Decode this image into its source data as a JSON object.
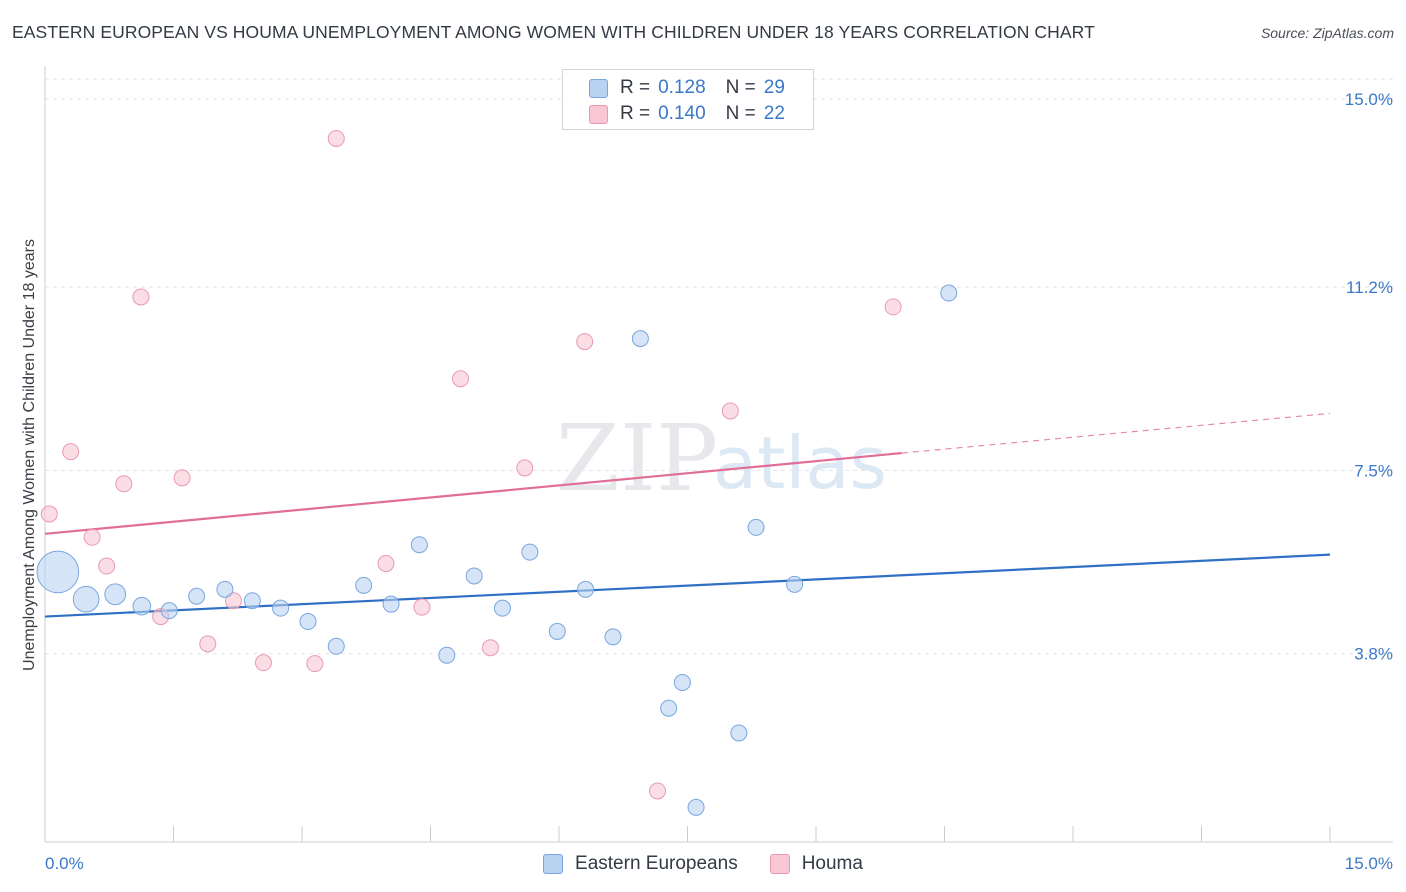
{
  "title": "EASTERN EUROPEAN VS HOUMA UNEMPLOYMENT AMONG WOMEN WITH CHILDREN UNDER 18 YEARS CORRELATION CHART",
  "source": "Source: ZipAtlas.com",
  "watermark": {
    "zip": "ZIP",
    "atlas": "atlas"
  },
  "legend": {
    "rows": [
      {
        "r_label": "R =",
        "r_value": "0.128",
        "n_label": "N =",
        "n_value": "29"
      },
      {
        "r_label": "R =",
        "r_value": "0.140",
        "n_label": "N =",
        "n_value": "22"
      }
    ]
  },
  "colors": {
    "eastern_fill": "#b9d2f2",
    "eastern_stroke": "#7aa6df",
    "eastern_line": "#2f6fc4",
    "houma_fill": "#f8c6d4",
    "houma_stroke": "#e99ab3",
    "houma_line": "#e06e96",
    "tick_label": "#3a78c9",
    "grid": "#dfe3e8"
  },
  "chart_data": {
    "type": "scatter",
    "title": "EASTERN EUROPEAN VS HOUMA UNEMPLOYMENT AMONG WOMEN WITH CHILDREN UNDER 18 YEARS CORRELATION CHART",
    "xlabel": "",
    "ylabel": "Unemployment Among Women with Children Under 18 years",
    "xlim": [
      0,
      15
    ],
    "ylim": [
      0,
      15.4
    ],
    "x_tick_labels": [
      "0.0%",
      "15.0%"
    ],
    "y_ticks": [
      3.8,
      7.5,
      11.2,
      15.0
    ],
    "y_tick_labels": [
      "3.8%",
      "7.5%",
      "11.2%",
      "15.0%"
    ],
    "legend_position": "top-center",
    "series": [
      {
        "name": "Eastern Europeans",
        "r": 0.128,
        "n": 29,
        "trend": {
          "x0": 0.0,
          "y0": 4.55,
          "x1": 15.0,
          "y1": 5.8
        },
        "points": [
          {
            "x": 0.15,
            "y": 5.45,
            "size": 2.6
          },
          {
            "x": 0.48,
            "y": 4.9,
            "size": 1.6
          },
          {
            "x": 0.82,
            "y": 5.0,
            "size": 1.3
          },
          {
            "x": 1.13,
            "y": 4.76,
            "size": 1.1
          },
          {
            "x": 1.45,
            "y": 4.67,
            "size": 1.0
          },
          {
            "x": 1.77,
            "y": 4.96,
            "size": 1.0
          },
          {
            "x": 2.1,
            "y": 5.1,
            "size": 1.0
          },
          {
            "x": 2.42,
            "y": 4.87,
            "size": 1.0
          },
          {
            "x": 2.75,
            "y": 4.72,
            "size": 1.0
          },
          {
            "x": 3.07,
            "y": 4.45,
            "size": 1.0
          },
          {
            "x": 3.4,
            "y": 3.95,
            "size": 1.0
          },
          {
            "x": 3.72,
            "y": 5.18,
            "size": 1.0
          },
          {
            "x": 4.04,
            "y": 4.8,
            "size": 1.0
          },
          {
            "x": 4.37,
            "y": 6.0,
            "size": 1.0
          },
          {
            "x": 4.69,
            "y": 3.77,
            "size": 1.0
          },
          {
            "x": 5.01,
            "y": 5.37,
            "size": 1.0
          },
          {
            "x": 5.34,
            "y": 4.72,
            "size": 1.0
          },
          {
            "x": 5.66,
            "y": 5.85,
            "size": 1.0
          },
          {
            "x": 5.98,
            "y": 4.25,
            "size": 1.0
          },
          {
            "x": 6.31,
            "y": 5.1,
            "size": 1.0
          },
          {
            "x": 6.63,
            "y": 4.14,
            "size": 1.0
          },
          {
            "x": 6.95,
            "y": 10.16,
            "size": 1.0
          },
          {
            "x": 7.28,
            "y": 2.7,
            "size": 1.0
          },
          {
            "x": 7.44,
            "y": 3.22,
            "size": 1.0
          },
          {
            "x": 7.6,
            "y": 0.7,
            "size": 1.0
          },
          {
            "x": 8.1,
            "y": 2.2,
            "size": 1.0
          },
          {
            "x": 8.3,
            "y": 6.35,
            "size": 1.0
          },
          {
            "x": 8.75,
            "y": 5.2,
            "size": 1.0
          },
          {
            "x": 10.55,
            "y": 11.08,
            "size": 1.0
          }
        ]
      },
      {
        "name": "Houma",
        "r": 0.14,
        "n": 22,
        "trend": {
          "x0": 0.0,
          "y0": 6.22,
          "x1": 10.0,
          "y1": 7.85,
          "dash_x1": 15.0,
          "dash_y1": 8.65
        },
        "points": [
          {
            "x": 0.05,
            "y": 6.62,
            "size": 1.0
          },
          {
            "x": 0.3,
            "y": 7.88,
            "size": 1.0
          },
          {
            "x": 0.55,
            "y": 6.15,
            "size": 1.0
          },
          {
            "x": 0.72,
            "y": 5.57,
            "size": 1.0
          },
          {
            "x": 0.92,
            "y": 7.23,
            "size": 1.0
          },
          {
            "x": 1.12,
            "y": 11.0,
            "size": 1.0
          },
          {
            "x": 1.35,
            "y": 4.55,
            "size": 1.0
          },
          {
            "x": 1.6,
            "y": 7.35,
            "size": 1.0
          },
          {
            "x": 1.9,
            "y": 4.0,
            "size": 1.0
          },
          {
            "x": 2.2,
            "y": 4.87,
            "size": 1.0
          },
          {
            "x": 2.55,
            "y": 3.62,
            "size": 1.0
          },
          {
            "x": 3.15,
            "y": 3.6,
            "size": 1.0
          },
          {
            "x": 3.4,
            "y": 14.2,
            "size": 1.0
          },
          {
            "x": 3.98,
            "y": 5.62,
            "size": 1.0
          },
          {
            "x": 4.4,
            "y": 4.74,
            "size": 1.0
          },
          {
            "x": 4.85,
            "y": 9.35,
            "size": 1.0
          },
          {
            "x": 5.2,
            "y": 3.92,
            "size": 1.0
          },
          {
            "x": 5.6,
            "y": 7.55,
            "size": 1.0
          },
          {
            "x": 6.3,
            "y": 10.1,
            "size": 1.0
          },
          {
            "x": 7.15,
            "y": 1.03,
            "size": 1.0
          },
          {
            "x": 8.0,
            "y": 8.7,
            "size": 1.0
          },
          {
            "x": 9.9,
            "y": 10.8,
            "size": 1.0
          }
        ]
      }
    ]
  }
}
